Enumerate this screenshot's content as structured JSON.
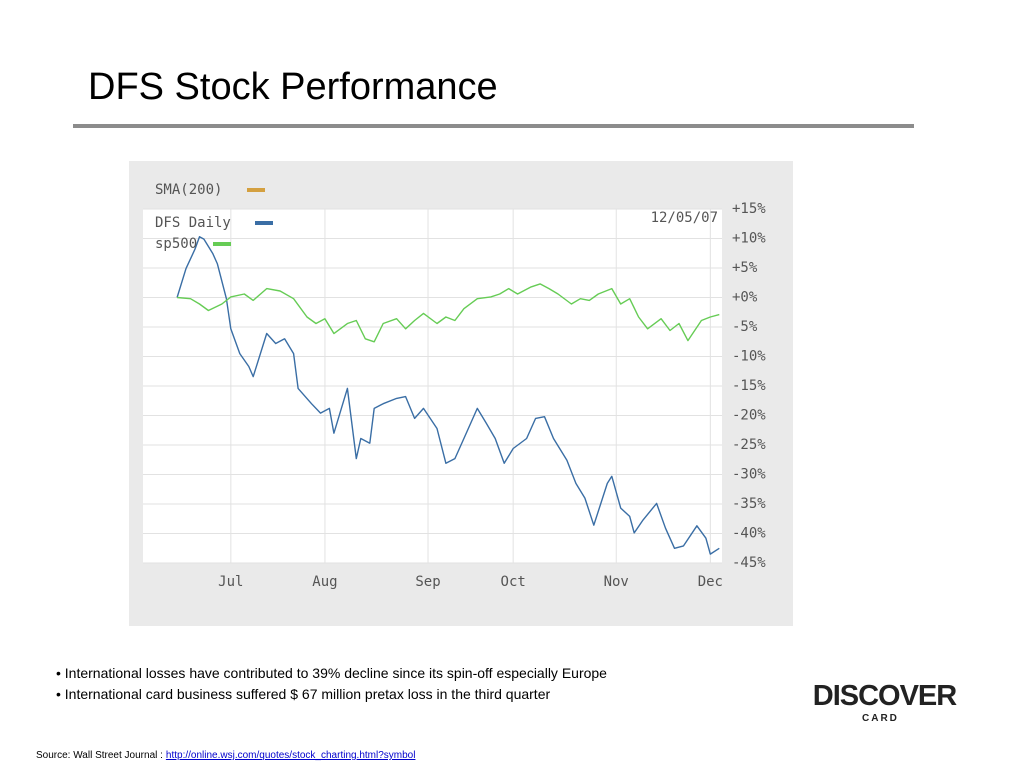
{
  "slide": {
    "title": "DFS Stock Performance",
    "bullets": [
      "International losses have contributed to 39% decline since its spin-off especially Europe",
      "International card business suffered $ 67 million pretax loss in the third quarter"
    ],
    "source_label": "Source: Wall Street Journal :",
    "source_url": "http://online.wsj.com/quotes/stock_charting.html?symbol"
  },
  "logo": {
    "name": "DISCOVER",
    "sub": "CARD"
  },
  "chart_data": {
    "type": "line",
    "annotation": "12/05/07",
    "grid": true,
    "xlim": [
      -7.6,
      121.6
    ],
    "xticks": [
      {
        "value": 12,
        "label": "Jul"
      },
      {
        "value": 33,
        "label": "Aug"
      },
      {
        "value": 56,
        "label": "Sep"
      },
      {
        "value": 75,
        "label": "Oct"
      },
      {
        "value": 98,
        "label": "Nov"
      },
      {
        "value": 119,
        "label": "Dec"
      }
    ],
    "ylim": [
      -45,
      15
    ],
    "yticks": [
      {
        "value": 15,
        "label": "+15%"
      },
      {
        "value": 10,
        "label": "+10%"
      },
      {
        "value": 5,
        "label": "+5%"
      },
      {
        "value": 0,
        "label": "+0%"
      },
      {
        "value": -5,
        "label": "-5%"
      },
      {
        "value": -10,
        "label": "-10%"
      },
      {
        "value": -15,
        "label": "-15%"
      },
      {
        "value": -20,
        "label": "-20%"
      },
      {
        "value": -25,
        "label": "-25%"
      },
      {
        "value": -30,
        "label": "-30%"
      },
      {
        "value": -35,
        "label": "-35%"
      },
      {
        "value": -40,
        "label": "-40%"
      },
      {
        "value": -45,
        "label": "-45%"
      }
    ],
    "series": [
      {
        "name": "SMA(200)",
        "color": "#d4a040",
        "x": [],
        "values": []
      },
      {
        "name": "DFS Daily",
        "color": "#3a6ea5",
        "x": [
          0,
          2,
          4,
          5,
          6,
          8,
          9,
          11,
          12,
          14,
          16,
          17,
          20,
          22,
          24,
          26,
          27,
          30,
          32,
          34,
          35,
          38,
          40,
          41,
          43,
          44,
          46,
          49,
          51,
          53,
          55,
          58,
          60,
          62,
          64,
          67,
          69,
          71,
          73,
          75,
          78,
          80,
          82,
          84,
          87,
          89,
          91,
          93,
          96,
          97,
          99,
          101,
          102,
          104,
          107,
          109,
          111,
          113,
          116,
          118,
          119,
          121
        ],
        "values": [
          0,
          4.9,
          8.2,
          10.3,
          9.9,
          7.4,
          5.7,
          -0.2,
          -5.3,
          -9.5,
          -11.7,
          -13.4,
          -6.1,
          -7.8,
          -7.0,
          -9.5,
          -15.4,
          -18.0,
          -19.6,
          -18.8,
          -23.0,
          -15.4,
          -27.3,
          -23.9,
          -24.7,
          -18.8,
          -18.0,
          -17.1,
          -16.8,
          -20.5,
          -18.8,
          -22.2,
          -28.1,
          -27.3,
          -23.9,
          -18.8,
          -21.3,
          -23.9,
          -28.1,
          -25.6,
          -23.9,
          -20.5,
          -20.2,
          -23.9,
          -27.6,
          -31.5,
          -34.0,
          -38.6,
          -31.5,
          -30.3,
          -35.7,
          -37.1,
          -39.9,
          -37.7,
          -34.9,
          -39.1,
          -42.5,
          -42.1,
          -38.7,
          -40.8,
          -43.5,
          -42.5
        ]
      },
      {
        "name": "sp500",
        "color": "#66cc55",
        "x": [
          0,
          3,
          5,
          7,
          10,
          12,
          15,
          17,
          20,
          23,
          26,
          29,
          31,
          33,
          35,
          38,
          40,
          42,
          44,
          46,
          49,
          51,
          53,
          55,
          58,
          60,
          62,
          64,
          67,
          70,
          72,
          74,
          76,
          79,
          81,
          83,
          85,
          88,
          90,
          92,
          94,
          97,
          99,
          101,
          103,
          105,
          108,
          110,
          112,
          114,
          117,
          119,
          121
        ],
        "values": [
          0,
          -0.2,
          -1.1,
          -2.2,
          -1.1,
          0.1,
          0.6,
          -0.5,
          1.5,
          1.1,
          -0.2,
          -3.3,
          -4.4,
          -3.6,
          -6.1,
          -4.4,
          -3.9,
          -7.0,
          -7.5,
          -4.4,
          -3.6,
          -5.3,
          -3.9,
          -2.7,
          -4.4,
          -3.3,
          -3.9,
          -1.9,
          -0.2,
          0.1,
          0.6,
          1.5,
          0.6,
          1.8,
          2.3,
          1.5,
          0.6,
          -1.1,
          -0.2,
          -0.5,
          0.6,
          1.5,
          -1.1,
          -0.2,
          -3.3,
          -5.3,
          -3.6,
          -5.6,
          -4.4,
          -7.3,
          -3.9,
          -3.3,
          -2.9
        ]
      }
    ]
  }
}
